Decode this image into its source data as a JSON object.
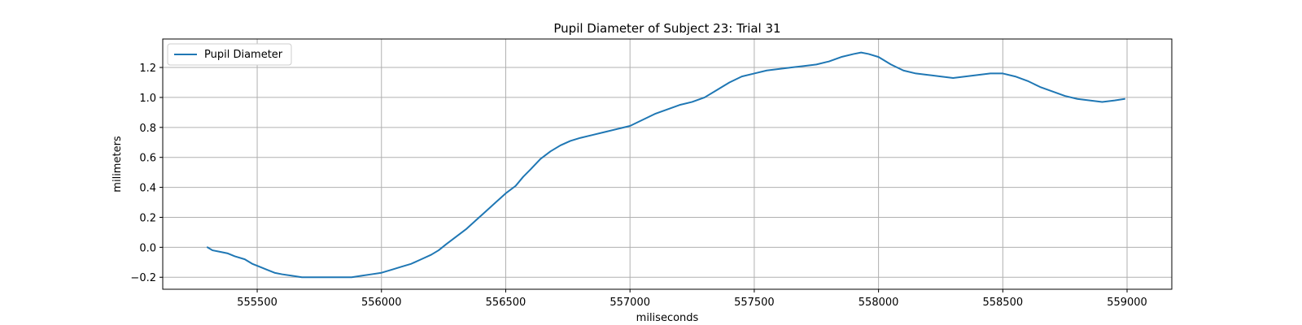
{
  "chart_data": {
    "type": "line",
    "title": "Pupil Diameter of Subject 23: Trial 31",
    "xlabel": "miliseconds",
    "ylabel": "milimeters",
    "xlim": [
      555120,
      559180
    ],
    "ylim": [
      -0.28,
      1.39
    ],
    "xticks": [
      555500,
      556000,
      556500,
      557000,
      557500,
      558000,
      558500,
      559000
    ],
    "xtick_labels": [
      "555500",
      "556000",
      "556500",
      "557000",
      "557500",
      "558000",
      "558500",
      "559000"
    ],
    "yticks": [
      -0.2,
      0.0,
      0.2,
      0.4,
      0.6,
      0.8,
      1.0,
      1.2
    ],
    "ytick_labels": [
      "−0.2",
      "0.0",
      "0.2",
      "0.4",
      "0.6",
      "0.8",
      "1.0",
      "1.2"
    ],
    "grid": true,
    "legend": {
      "position": "top-left",
      "entries": [
        "Pupil Diameter"
      ]
    },
    "series": [
      {
        "name": "Pupil Diameter",
        "color": "#1f77b4",
        "points": [
          [
            555300,
            0.0
          ],
          [
            555320,
            -0.02
          ],
          [
            555350,
            -0.03
          ],
          [
            555380,
            -0.04
          ],
          [
            555410,
            -0.06
          ],
          [
            555450,
            -0.08
          ],
          [
            555480,
            -0.11
          ],
          [
            555510,
            -0.13
          ],
          [
            555540,
            -0.15
          ],
          [
            555570,
            -0.17
          ],
          [
            555600,
            -0.18
          ],
          [
            555640,
            -0.19
          ],
          [
            555680,
            -0.2
          ],
          [
            555720,
            -0.2
          ],
          [
            555760,
            -0.2
          ],
          [
            555800,
            -0.2
          ],
          [
            555840,
            -0.2
          ],
          [
            555880,
            -0.2
          ],
          [
            555920,
            -0.19
          ],
          [
            555960,
            -0.18
          ],
          [
            556000,
            -0.17
          ],
          [
            556040,
            -0.15
          ],
          [
            556080,
            -0.13
          ],
          [
            556120,
            -0.11
          ],
          [
            556160,
            -0.08
          ],
          [
            556200,
            -0.05
          ],
          [
            556230,
            -0.02
          ],
          [
            556260,
            0.02
          ],
          [
            556300,
            0.07
          ],
          [
            556340,
            0.12
          ],
          [
            556380,
            0.18
          ],
          [
            556420,
            0.24
          ],
          [
            556460,
            0.3
          ],
          [
            556500,
            0.36
          ],
          [
            556540,
            0.41
          ],
          [
            556570,
            0.47
          ],
          [
            556600,
            0.52
          ],
          [
            556640,
            0.59
          ],
          [
            556680,
            0.64
          ],
          [
            556720,
            0.68
          ],
          [
            556760,
            0.71
          ],
          [
            556800,
            0.73
          ],
          [
            556850,
            0.75
          ],
          [
            556900,
            0.77
          ],
          [
            556950,
            0.79
          ],
          [
            557000,
            0.81
          ],
          [
            557050,
            0.85
          ],
          [
            557100,
            0.89
          ],
          [
            557150,
            0.92
          ],
          [
            557200,
            0.95
          ],
          [
            557250,
            0.97
          ],
          [
            557300,
            1.0
          ],
          [
            557350,
            1.05
          ],
          [
            557400,
            1.1
          ],
          [
            557450,
            1.14
          ],
          [
            557500,
            1.16
          ],
          [
            557550,
            1.18
          ],
          [
            557600,
            1.19
          ],
          [
            557650,
            1.2
          ],
          [
            557700,
            1.21
          ],
          [
            557750,
            1.22
          ],
          [
            557800,
            1.24
          ],
          [
            557850,
            1.27
          ],
          [
            557900,
            1.29
          ],
          [
            557930,
            1.3
          ],
          [
            557960,
            1.29
          ],
          [
            558000,
            1.27
          ],
          [
            558050,
            1.22
          ],
          [
            558100,
            1.18
          ],
          [
            558150,
            1.16
          ],
          [
            558200,
            1.15
          ],
          [
            558250,
            1.14
          ],
          [
            558300,
            1.13
          ],
          [
            558350,
            1.14
          ],
          [
            558400,
            1.15
          ],
          [
            558450,
            1.16
          ],
          [
            558500,
            1.16
          ],
          [
            558550,
            1.14
          ],
          [
            558600,
            1.11
          ],
          [
            558650,
            1.07
          ],
          [
            558700,
            1.04
          ],
          [
            558750,
            1.01
          ],
          [
            558800,
            0.99
          ],
          [
            558850,
            0.98
          ],
          [
            558900,
            0.97
          ],
          [
            558950,
            0.98
          ],
          [
            558990,
            0.99
          ]
        ]
      }
    ]
  }
}
